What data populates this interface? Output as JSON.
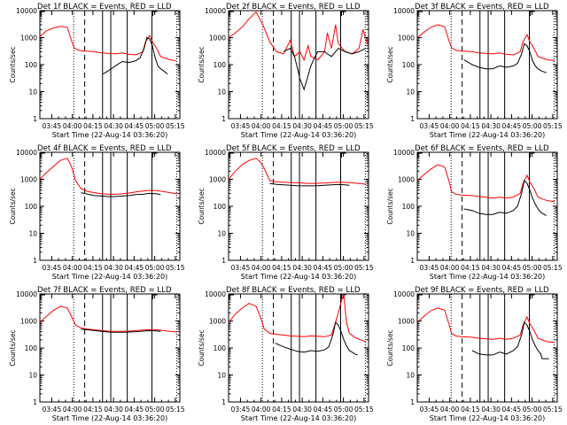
{
  "figure": {
    "xlabel": "Start Time (22-Aug-14 03:36:20)",
    "ylabel": "Counts/sec",
    "xtick_labels": [
      "03:45",
      "04:00",
      "04:15",
      "04:30",
      "04:45",
      "05:00",
      "05:15"
    ],
    "ytick_labels": [
      "1",
      "10",
      "100",
      "1000",
      "10000"
    ],
    "colors": {
      "events": "#000000",
      "lld": "#ff0000"
    }
  },
  "chart_data": [
    {
      "type": "line",
      "title": "Det 1f BLACK = Events, RED = LLD",
      "x_unit": "minutes after 03:36:20",
      "xlim": [
        0,
        102
      ],
      "ylim": [
        1,
        10000
      ],
      "yscale": "log",
      "dotted_lines": [
        24.67,
        99.67
      ],
      "dashed_lines": [
        32.67
      ],
      "solid_lines": [
        45.67,
        51.67,
        63.67,
        81.67
      ],
      "series": [
        {
          "name": "LLD",
          "color": "#ff0000",
          "x": [
            0,
            5,
            10,
            15,
            20,
            23,
            25,
            28,
            32,
            40,
            45,
            50,
            55,
            60,
            65,
            70,
            75,
            77,
            80,
            82,
            85,
            88,
            92,
            95,
            99
          ],
          "y": [
            1100,
            1800,
            2300,
            2600,
            2400,
            800,
            420,
            340,
            320,
            300,
            270,
            260,
            250,
            270,
            240,
            230,
            300,
            700,
            1200,
            700,
            400,
            200,
            170,
            150,
            140
          ]
        },
        {
          "name": "Events",
          "color": "#000000",
          "x": [
            46,
            50,
            55,
            60,
            65,
            70,
            73,
            76,
            78,
            80,
            82,
            84,
            86,
            88,
            90,
            93
          ],
          "y": [
            45,
            60,
            90,
            130,
            120,
            140,
            180,
            400,
            1000,
            900,
            500,
            180,
            90,
            70,
            60,
            45
          ]
        }
      ]
    },
    {
      "type": "line",
      "title": "Det 2f BLACK = Events, RED = LLD",
      "x_unit": "minutes after 03:36:20",
      "xlim": [
        0,
        102
      ],
      "ylim": [
        1,
        10000
      ],
      "yscale": "log",
      "dotted_lines": [
        24.67,
        99.67
      ],
      "dashed_lines": [
        32.67
      ],
      "solid_lines": [
        45.67,
        51.67,
        63.67,
        81.67
      ],
      "series": [
        {
          "name": "LLD",
          "color": "#ff0000",
          "x": [
            0,
            5,
            10,
            15,
            20,
            25,
            30,
            35,
            40,
            45,
            48,
            52,
            55,
            58,
            60,
            65,
            70,
            72,
            75,
            78,
            80,
            85,
            90,
            95,
            98,
            101
          ],
          "y": [
            1000,
            1500,
            2500,
            5000,
            9000,
            3000,
            700,
            300,
            250,
            800,
            200,
            300,
            150,
            500,
            200,
            150,
            300,
            1500,
            400,
            3000,
            600,
            300,
            250,
            400,
            2000,
            600
          ]
        },
        {
          "name": "Events",
          "color": "#000000",
          "x": [
            40,
            45,
            48,
            50,
            52,
            55,
            58,
            60,
            63,
            65,
            70,
            72,
            75,
            78,
            80,
            85,
            90,
            95,
            100
          ],
          "y": [
            300,
            400,
            200,
            80,
            30,
            12,
            40,
            90,
            200,
            300,
            300,
            250,
            200,
            300,
            400,
            300,
            250,
            300,
            400
          ]
        }
      ]
    },
    {
      "type": "line",
      "title": "Det 3f BLACK = Events, RED = LLD",
      "x_unit": "minutes after 03:36:20",
      "xlim": [
        0,
        102
      ],
      "ylim": [
        1,
        10000
      ],
      "yscale": "log",
      "dotted_lines": [
        24.67,
        99.67
      ],
      "dashed_lines": [
        32.67
      ],
      "solid_lines": [
        45.67,
        51.67,
        63.67,
        81.67
      ],
      "series": [
        {
          "name": "LLD",
          "color": "#ff0000",
          "x": [
            0,
            5,
            10,
            15,
            20,
            23,
            25,
            28,
            32,
            40,
            45,
            50,
            55,
            60,
            65,
            70,
            75,
            77,
            80,
            82,
            85,
            88,
            92,
            95,
            100
          ],
          "y": [
            1000,
            1600,
            2400,
            3000,
            2500,
            800,
            420,
            340,
            320,
            300,
            270,
            260,
            250,
            270,
            240,
            230,
            300,
            700,
            1300,
            700,
            400,
            200,
            170,
            150,
            140
          ]
        },
        {
          "name": "Events",
          "color": "#000000",
          "x": [
            34,
            40,
            45,
            50,
            55,
            60,
            65,
            70,
            73,
            76,
            78,
            80,
            82,
            84,
            86,
            88,
            90,
            94
          ],
          "y": [
            150,
            100,
            80,
            70,
            70,
            90,
            80,
            90,
            110,
            250,
            600,
            500,
            300,
            140,
            90,
            70,
            60,
            50
          ]
        }
      ]
    },
    {
      "type": "line",
      "title": "Det 4f BLACK = Events, RED = LLD",
      "x_unit": "minutes after 03:36:20",
      "xlim": [
        0,
        102
      ],
      "ylim": [
        1,
        10000
      ],
      "yscale": "log",
      "dotted_lines": [
        24.67,
        99.67
      ],
      "dashed_lines": [
        32.67
      ],
      "solid_lines": [
        45.67,
        51.67,
        63.67,
        81.67
      ],
      "series": [
        {
          "name": "LLD",
          "color": "#ff0000",
          "x": [
            0,
            5,
            10,
            15,
            20,
            23,
            26,
            30,
            35,
            40,
            45,
            50,
            55,
            60,
            65,
            70,
            75,
            80,
            85,
            90,
            95,
            100
          ],
          "y": [
            1000,
            1800,
            3000,
            5000,
            6000,
            3000,
            900,
            450,
            350,
            320,
            290,
            280,
            280,
            290,
            310,
            340,
            370,
            390,
            380,
            350,
            320,
            290
          ]
        },
        {
          "name": "Events",
          "color": "#000000",
          "x": [
            30,
            35,
            40,
            45,
            50,
            55,
            60,
            65,
            70,
            75,
            80,
            85,
            88
          ],
          "y": [
            320,
            280,
            250,
            240,
            230,
            230,
            240,
            250,
            270,
            280,
            300,
            290,
            270
          ]
        }
      ]
    },
    {
      "type": "line",
      "title": "Det 5f BLACK = Events, RED = LLD",
      "x_unit": "minutes after 03:36:20",
      "xlim": [
        0,
        102
      ],
      "ylim": [
        1,
        10000
      ],
      "yscale": "log",
      "dotted_lines": [
        24.67,
        99.67
      ],
      "dashed_lines": [
        32.67
      ],
      "solid_lines": [
        45.67,
        51.67,
        63.67,
        81.67
      ],
      "series": [
        {
          "name": "LLD",
          "color": "#ff0000",
          "x": [
            0,
            5,
            10,
            15,
            20,
            23,
            26,
            30,
            35,
            40,
            45,
            50,
            55,
            60,
            65,
            70,
            75,
            80,
            85,
            90,
            95,
            100
          ],
          "y": [
            1000,
            2000,
            3500,
            5000,
            6000,
            4500,
            2500,
            900,
            800,
            780,
            760,
            740,
            720,
            700,
            710,
            730,
            760,
            780,
            770,
            740,
            700,
            660
          ]
        },
        {
          "name": "Events",
          "color": "#000000",
          "x": [
            30,
            35,
            40,
            45,
            50,
            55,
            60,
            65,
            70,
            75,
            80,
            85,
            88
          ],
          "y": [
            700,
            650,
            620,
            600,
            580,
            570,
            570,
            580,
            600,
            620,
            640,
            620,
            600
          ]
        }
      ]
    },
    {
      "type": "line",
      "title": "Det 6f BLACK = Events, RED = LLD",
      "x_unit": "minutes after 03:36:20",
      "xlim": [
        0,
        102
      ],
      "ylim": [
        1,
        10000
      ],
      "yscale": "log",
      "dotted_lines": [
        24.67,
        99.67
      ],
      "dashed_lines": [
        32.67
      ],
      "solid_lines": [
        45.67,
        51.67,
        63.67,
        81.67
      ],
      "series": [
        {
          "name": "LLD",
          "color": "#ff0000",
          "x": [
            0,
            5,
            10,
            15,
            20,
            23,
            25,
            28,
            32,
            40,
            45,
            50,
            55,
            60,
            65,
            70,
            75,
            77,
            80,
            82,
            85,
            88,
            92,
            95,
            100
          ],
          "y": [
            900,
            1500,
            2400,
            3500,
            2800,
            900,
            350,
            280,
            260,
            250,
            230,
            220,
            200,
            220,
            200,
            220,
            300,
            700,
            1400,
            800,
            450,
            220,
            180,
            160,
            150
          ]
        },
        {
          "name": "Events",
          "color": "#000000",
          "x": [
            34,
            40,
            45,
            50,
            55,
            60,
            65,
            70,
            73,
            76,
            78,
            80,
            82,
            84,
            86,
            88,
            90,
            94
          ],
          "y": [
            80,
            70,
            55,
            50,
            50,
            60,
            55,
            70,
            100,
            300,
            900,
            700,
            400,
            200,
            120,
            80,
            60,
            45
          ]
        }
      ]
    },
    {
      "type": "line",
      "title": "Det 7f BLACK = Events, RED = LLD",
      "x_unit": "minutes after 03:36:20",
      "xlim": [
        0,
        102
      ],
      "ylim": [
        1,
        10000
      ],
      "yscale": "log",
      "dotted_lines": [
        24.67,
        99.67
      ],
      "dashed_lines": [
        32.67
      ],
      "solid_lines": [
        45.67,
        51.67,
        63.67,
        81.67
      ],
      "series": [
        {
          "name": "LLD",
          "color": "#ff0000",
          "x": [
            0,
            5,
            10,
            15,
            20,
            23,
            26,
            30,
            35,
            40,
            45,
            50,
            55,
            60,
            65,
            70,
            75,
            80,
            85,
            90,
            95,
            100
          ],
          "y": [
            900,
            1500,
            2500,
            3500,
            3000,
            1500,
            700,
            550,
            500,
            470,
            440,
            420,
            410,
            410,
            420,
            440,
            460,
            480,
            470,
            440,
            410,
            390
          ]
        },
        {
          "name": "Events",
          "color": "#000000",
          "x": [
            30,
            35,
            40,
            45,
            50,
            55,
            60,
            65,
            70,
            75,
            80,
            85,
            88
          ],
          "y": [
            500,
            470,
            440,
            410,
            390,
            380,
            380,
            390,
            400,
            420,
            440,
            430,
            410
          ]
        }
      ]
    },
    {
      "type": "line",
      "title": "Det 8f BLACK = Events, RED = LLD",
      "x_unit": "minutes after 03:36:20",
      "xlim": [
        0,
        102
      ],
      "ylim": [
        1,
        10000
      ],
      "yscale": "log",
      "dotted_lines": [
        24.67,
        99.67
      ],
      "dashed_lines": [
        32.67
      ],
      "solid_lines": [
        45.67,
        51.67,
        63.67,
        81.67
      ],
      "series": [
        {
          "name": "LLD",
          "color": "#ff0000",
          "x": [
            0,
            5,
            10,
            15,
            20,
            23,
            26,
            30,
            35,
            40,
            45,
            50,
            55,
            60,
            65,
            70,
            75,
            78,
            80,
            82,
            84,
            85,
            86,
            88,
            92,
            96,
            100
          ],
          "y": [
            900,
            1800,
            3000,
            4500,
            3500,
            1500,
            500,
            350,
            320,
            300,
            280,
            270,
            260,
            280,
            270,
            260,
            300,
            900,
            2000,
            5000,
            10000,
            2500,
            900,
            350,
            250,
            200,
            170
          ]
        },
        {
          "name": "Events",
          "color": "#000000",
          "x": [
            34,
            40,
            45,
            50,
            55,
            60,
            65,
            70,
            73,
            76,
            78,
            80,
            82,
            84,
            86,
            88,
            90,
            92,
            94
          ],
          "y": [
            150,
            110,
            90,
            75,
            70,
            80,
            75,
            85,
            110,
            300,
            900,
            700,
            400,
            200,
            120,
            80,
            70,
            60,
            55
          ]
        }
      ]
    },
    {
      "type": "line",
      "title": "Det 9f BLACK = Events, RED = LLD",
      "x_unit": "minutes after 03:36:20",
      "xlim": [
        0,
        102
      ],
      "ylim": [
        1,
        10000
      ],
      "yscale": "log",
      "dotted_lines": [
        24.67,
        99.67
      ],
      "dashed_lines": [
        32.67
      ],
      "solid_lines": [
        45.67,
        51.67,
        63.67,
        81.67
      ],
      "series": [
        {
          "name": "LLD",
          "color": "#ff0000",
          "x": [
            0,
            5,
            10,
            15,
            20,
            23,
            25,
            28,
            32,
            40,
            45,
            50,
            55,
            60,
            65,
            70,
            75,
            77,
            80,
            82,
            85,
            88,
            92,
            95,
            100
          ],
          "y": [
            900,
            1500,
            2400,
            3000,
            2500,
            800,
            350,
            280,
            260,
            250,
            230,
            220,
            210,
            230,
            210,
            230,
            300,
            700,
            1400,
            800,
            450,
            230,
            190,
            170,
            160
          ]
        },
        {
          "name": "Events",
          "color": "#000000",
          "x": [
            40,
            45,
            50,
            55,
            60,
            65,
            70,
            73,
            76,
            78,
            80,
            82,
            84,
            86,
            88,
            90,
            91,
            96
          ],
          "y": [
            80,
            60,
            55,
            55,
            70,
            60,
            80,
            110,
            300,
            900,
            700,
            400,
            200,
            120,
            80,
            60,
            40,
            40
          ]
        }
      ]
    }
  ]
}
